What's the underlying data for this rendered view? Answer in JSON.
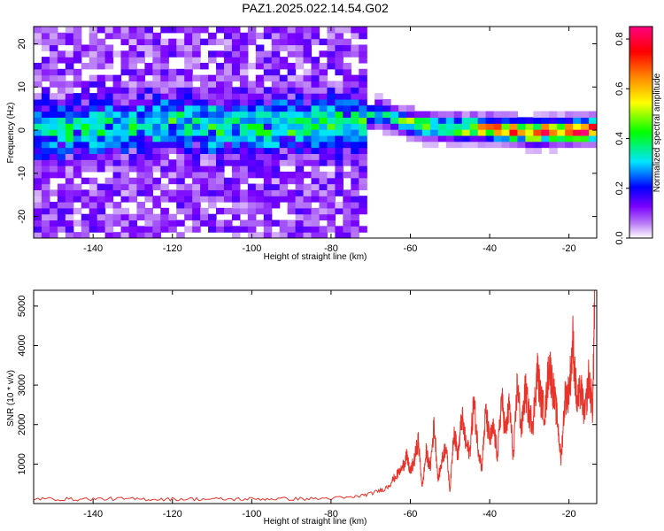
{
  "figure_title": "PAZ1.2025.022.14.54.G02",
  "chart_data": [
    {
      "type": "heatmap",
      "title": "PAZ1.2025.022.14.54.G02",
      "xlabel": "Height of straight line (km)",
      "ylabel": "Frequency (Hz)",
      "xlim": [
        -155,
        -13
      ],
      "ylim": [
        -25,
        24
      ],
      "xticks": [
        -140,
        -120,
        -100,
        -80,
        -60,
        -40,
        -20
      ],
      "yticks": [
        20,
        10,
        0,
        -10,
        -20
      ],
      "colorbar": {
        "label": "Normalized spectral amplitude",
        "range": [
          0.0,
          0.85
        ],
        "ticks": [
          0.0,
          0.2,
          0.4,
          0.6,
          0.8
        ],
        "colormap": [
          "#ffffff",
          "#b87bf5",
          "#7a00ff",
          "#0000ff",
          "#00e5ff",
          "#00ff00",
          "#ffff00",
          "#ff8800",
          "#ff0000",
          "#ff0080"
        ]
      },
      "ridge": {
        "x": [
          -155,
          -140,
          -130,
          -120,
          -110,
          -100,
          -90,
          -80,
          -72,
          -68,
          -63,
          -58,
          -50,
          -40,
          -30,
          -20,
          -13
        ],
        "y": [
          0.0,
          0.3,
          1.0,
          2.0,
          1.0,
          0.5,
          1.2,
          1.5,
          2.5,
          4.0,
          2.5,
          1.0,
          0.5,
          0.5,
          -0.5,
          0.0,
          0.0
        ],
        "amplitude": [
          0.25,
          0.3,
          0.25,
          0.3,
          0.3,
          0.28,
          0.3,
          0.3,
          0.32,
          0.4,
          0.45,
          0.5,
          0.55,
          0.65,
          0.75,
          0.8,
          0.85
        ]
      },
      "background_amplitude": 0.1
    },
    {
      "type": "line",
      "xlabel": "Height of straight line (km)",
      "ylabel": "SNR (10 * v/v)",
      "xlim": [
        -155,
        -13
      ],
      "ylim": [
        0,
        5400
      ],
      "xticks": [
        -140,
        -120,
        -100,
        -80,
        -60,
        -40,
        -20
      ],
      "yticks": [
        1000,
        2000,
        3000,
        4000,
        5000
      ],
      "series": [
        {
          "color": "#e8332a",
          "x": [
            -155,
            -145,
            -135,
            -125,
            -115,
            -105,
            -95,
            -85,
            -75,
            -70,
            -66,
            -64,
            -62,
            -61,
            -60,
            -59,
            -58,
            -57,
            -56,
            -55,
            -54,
            -53,
            -52,
            -51,
            -50,
            -49,
            -48,
            -47,
            -46,
            -45,
            -44,
            -43,
            -42,
            -41,
            -40,
            -39,
            -38,
            -37,
            -36,
            -35,
            -34,
            -33,
            -32,
            -31,
            -30,
            -29,
            -28,
            -27,
            -26,
            -25,
            -24,
            -23,
            -22,
            -21,
            -20,
            -19,
            -18,
            -17,
            -16,
            -15,
            -14,
            -13.5
          ],
          "y": [
            120,
            110,
            120,
            110,
            115,
            110,
            120,
            120,
            150,
            250,
            400,
            650,
            900,
            1200,
            800,
            1100,
            1600,
            400,
            1300,
            900,
            2000,
            600,
            1100,
            1500,
            300,
            1900,
            1200,
            2200,
            1500,
            1300,
            2600,
            1500,
            900,
            2300,
            1600,
            1900,
            1200,
            2700,
            1800,
            2500,
            1100,
            3100,
            1800,
            2900,
            2200,
            2100,
            3400,
            2600,
            2300,
            3600,
            2900,
            2200,
            1100,
            2700,
            2800,
            4100,
            2500,
            2900,
            2200,
            3200,
            2400,
            5400
          ]
        }
      ]
    }
  ]
}
